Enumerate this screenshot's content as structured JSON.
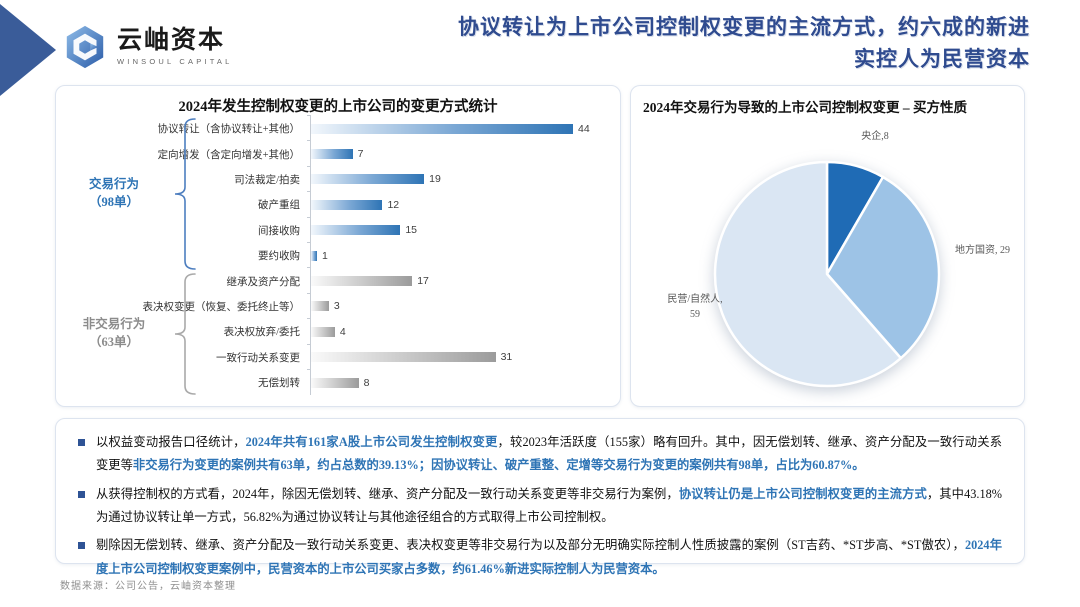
{
  "header": {
    "logo": {
      "name": "云岫资本",
      "subtitle": "WINSOUL CAPITAL"
    },
    "title_line1": "协议转让为上市公司控制权变更的主流方式，约六成的新进",
    "title_line2": "实控人为民营资本",
    "title_color": "#2F4B8F"
  },
  "chart_data": [
    {
      "type": "bar",
      "orientation": "horizontal",
      "title": "2024年发生控制权变更的上市公司的变更方式统计",
      "categories": [
        "协议转让（含协议转让+其他）",
        "定向增发（含定向增发+其他）",
        "司法裁定/拍卖",
        "破产重组",
        "间接收购",
        "要约收购",
        "继承及资产分配",
        "表决权变更（恢复、委托终止等）",
        "表决权放弃/委托",
        "一致行动关系变更",
        "无偿划转"
      ],
      "values": [
        44,
        7,
        19,
        12,
        15,
        1,
        17,
        3,
        4,
        31,
        8
      ],
      "xlim": [
        0,
        48
      ],
      "grid": false,
      "bar_colors": {
        "transaction": "#2E74B5",
        "non_transaction": "#9B9B9B"
      },
      "groups": [
        {
          "label": "交易行为",
          "sub": "（98单）",
          "first_row": 0,
          "last_row": 5,
          "total": 98,
          "color": "#2E74B5"
        },
        {
          "label": "非交易行为",
          "sub": "（63单）",
          "first_row": 6,
          "last_row": 10,
          "total": 63,
          "color": "#8C8C8C"
        }
      ]
    },
    {
      "type": "pie",
      "title": "2024年交易行为导致的上市公司控制权变更 – 买方性质",
      "labels": [
        "央企",
        "地方国资",
        "民营/自然人"
      ],
      "values": [
        8,
        29,
        59
      ],
      "colors": [
        "#1F6BB5",
        "#9DC3E6",
        "#DAE6F3"
      ],
      "start_angle_deg": 0,
      "direction": "clockwise",
      "callouts": [
        "央企,8",
        "地方国资, 29",
        "民营/自然人,",
        "59"
      ]
    }
  ],
  "notes": {
    "bullets": [
      {
        "segments": [
          {
            "text": "以权益变动报告口径统计，",
            "style": "normal"
          },
          {
            "text": "2024年共有161家A股上市公司发生控制权变更",
            "style": "highlight"
          },
          {
            "text": "，较2023年活跃度（155家）略有回升。其中，因无偿划转、继承、资产分配及一致行动关系变更等",
            "style": "normal"
          },
          {
            "text": "非交易行为变更的案例共有63单，约占总数的39.13%；因协议转让、破产重整、定增等交易行为变更的案例共有98单，占比为60.87%。",
            "style": "highlight"
          }
        ]
      },
      {
        "segments": [
          {
            "text": "从获得控制权的方式看，2024年，除因无偿划转、继承、资产分配及一致行动关系变更等非交易行为案例，",
            "style": "normal"
          },
          {
            "text": "协议转让仍是上市公司控制权变更的主流方式",
            "style": "highlight"
          },
          {
            "text": "，其中43.18%为通过协议转让单一方式，56.82%为通过协议转让与其他途径组合的方式取得上市公司控制权。",
            "style": "normal"
          }
        ]
      },
      {
        "segments": [
          {
            "text": "剔除因无偿划转、继承、资产分配及一致行动关系变更、表决权变更等非交易行为以及部分无明确实际控制人性质披露的案例（ST吉药、*ST步高、*ST傲农），",
            "style": "normal"
          },
          {
            "text": "2024年度上市公司控制权变更案例中，民营资本的上市公司买家占多数，约61.46%新进实际控制人为民营资本。",
            "style": "highlight"
          }
        ]
      }
    ]
  },
  "footer": {
    "source": "数据来源：公司公告，云岫资本整理"
  }
}
